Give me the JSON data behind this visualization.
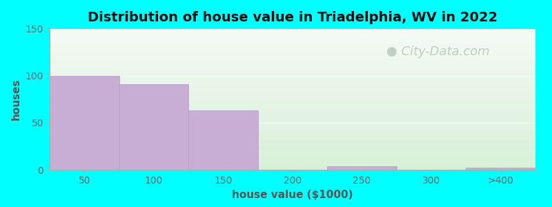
{
  "title": "Distribution of house value in Triadelphia, WV in 2022",
  "xlabel": "house value ($1000)",
  "ylabel": "houses",
  "background_outer": "#00FFFF",
  "bar_color": "#c8aed4",
  "bar_edge_color": "#b8a0cc",
  "categories": [
    "50",
    "100",
    "150",
    "200",
    "250",
    "300",
    ">400"
  ],
  "values": [
    100,
    91,
    63,
    0,
    4,
    0,
    2
  ],
  "ylim": [
    0,
    150
  ],
  "yticks": [
    0,
    50,
    100,
    150
  ],
  "xlim": [
    -0.5,
    6.5
  ],
  "title_fontsize": 14,
  "axis_label_fontsize": 11,
  "tick_fontsize": 10,
  "watermark_text": "City-Data.com",
  "watermark_color": "#b8c8b8",
  "watermark_fontsize": 13,
  "grad_top_color": "#f5faf5",
  "grad_bottom_color": "#d8f0d8",
  "grid_color": "#e8f5e8",
  "spine_color": "#aaaaaa"
}
